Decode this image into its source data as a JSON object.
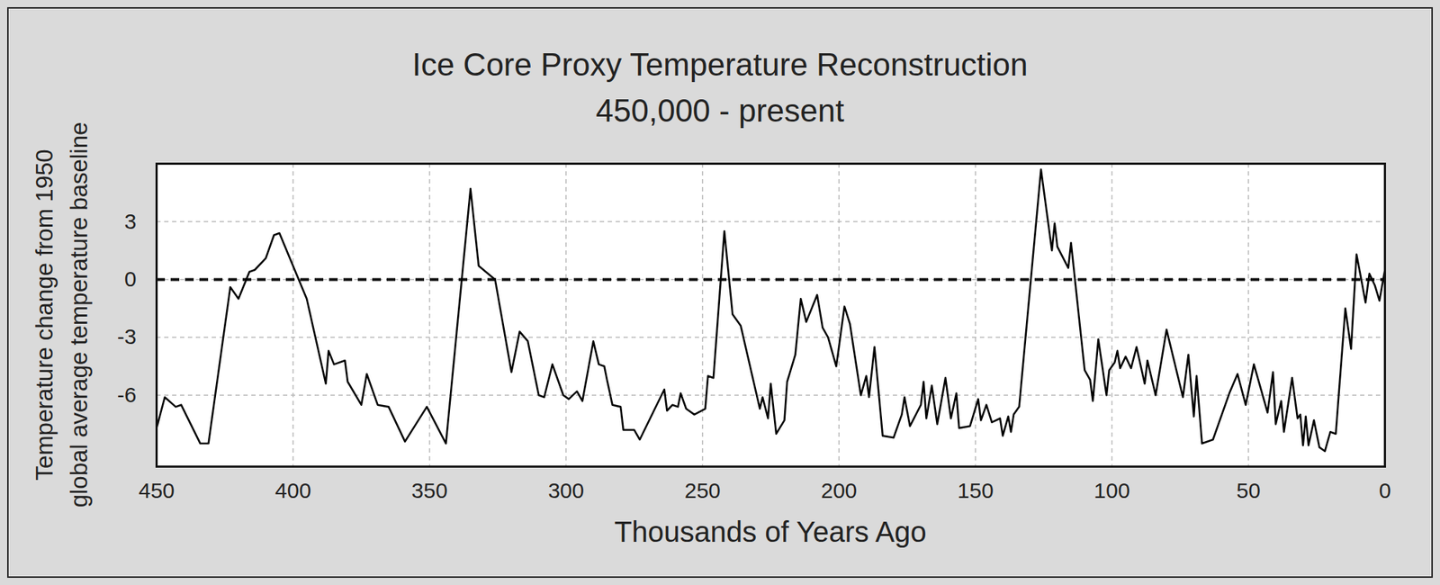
{
  "chart_data": {
    "type": "line",
    "title": "Ice Core Proxy Temperature Reconstruction",
    "subtitle": "450,000 - present",
    "x_label": "Thousands of Years Ago",
    "y_label": "Temperature change from 1950\nglobal average temperature baseline",
    "color": "#000000",
    "grid": true,
    "baseline": 0,
    "xlim": [
      450,
      0
    ],
    "xticks": [
      450,
      400,
      350,
      300,
      250,
      200,
      150,
      100,
      50,
      0
    ],
    "ylim": [
      -9.7,
      6
    ],
    "yticks": [
      3,
      0,
      -3,
      -6
    ],
    "x": [
      450,
      447,
      443,
      441,
      434,
      431,
      423,
      420,
      416,
      414,
      410,
      407,
      405,
      395,
      388,
      387,
      385,
      381,
      380,
      375,
      373,
      369,
      365,
      359,
      351,
      344,
      335,
      332,
      326,
      320,
      317,
      314,
      310,
      308,
      305,
      301,
      299,
      296,
      294,
      290,
      288,
      286,
      285,
      283,
      280,
      279,
      275,
      273,
      264,
      263,
      261,
      259,
      258,
      256,
      253,
      249,
      248,
      246,
      242,
      239,
      236,
      229,
      228,
      226,
      225,
      223,
      220,
      219,
      216,
      214,
      212,
      208,
      206,
      204,
      201,
      198,
      196,
      192,
      190,
      189,
      187,
      184,
      180,
      177,
      176,
      174,
      170,
      169,
      168,
      166,
      164,
      161,
      159,
      157,
      156,
      152,
      149,
      148,
      146,
      144,
      141,
      140,
      138,
      137,
      136,
      134,
      126,
      122,
      121,
      120,
      116,
      115,
      110,
      108,
      107,
      105,
      102,
      101,
      99,
      98,
      97,
      95,
      93,
      91,
      88,
      87,
      84,
      80,
      74,
      72,
      70,
      69,
      67,
      63,
      57,
      54,
      51,
      48,
      46,
      43,
      41,
      40,
      38,
      37,
      34,
      32,
      31,
      30,
      29,
      28,
      26,
      24,
      22,
      20,
      18,
      14.5,
      12.4,
      10.4,
      8.4,
      7.1,
      5.7,
      3.7,
      2,
      0
    ],
    "values": [
      -7.7,
      -6.1,
      -6.6,
      -6.5,
      -8.5,
      -8.5,
      -0.4,
      -1.0,
      0.4,
      0.5,
      1.1,
      2.3,
      2.4,
      -1.0,
      -5.4,
      -3.7,
      -4.4,
      -4.2,
      -5.3,
      -6.5,
      -4.9,
      -6.5,
      -6.6,
      -8.4,
      -6.6,
      -8.5,
      4.7,
      0.7,
      0,
      -4.8,
      -2.7,
      -3.2,
      -6.0,
      -6.1,
      -4.4,
      -6.0,
      -6.2,
      -5.8,
      -6.3,
      -3.2,
      -4.4,
      -4.5,
      -5.2,
      -6.5,
      -6.6,
      -7.8,
      -7.8,
      -8.3,
      -5.7,
      -6.8,
      -6.5,
      -6.6,
      -5.9,
      -6.7,
      -7.0,
      -6.7,
      -5.0,
      -5.1,
      2.5,
      -1.8,
      -2.4,
      -6.7,
      -6.1,
      -7.2,
      -5.4,
      -8.0,
      -7.3,
      -5.3,
      -3.9,
      -1.0,
      -2.2,
      -0.8,
      -2.5,
      -3.0,
      -4.5,
      -1.4,
      -2.3,
      -6.0,
      -5.0,
      -6.1,
      -3.5,
      -8.1,
      -8.2,
      -7.0,
      -6.1,
      -7.6,
      -6.5,
      -5.3,
      -7.2,
      -5.5,
      -7.5,
      -5.1,
      -7.2,
      -5.9,
      -7.7,
      -7.6,
      -6.2,
      -7.3,
      -6.5,
      -7.4,
      -7.2,
      -8.1,
      -7.1,
      -7.9,
      -7.0,
      -6.6,
      5.7,
      1.5,
      2.9,
      1.7,
      0.6,
      1.9,
      -4.7,
      -5.2,
      -6.3,
      -3.1,
      -6.0,
      -4.7,
      -4.3,
      -3.7,
      -4.6,
      -4.0,
      -4.6,
      -3.5,
      -5.4,
      -4.2,
      -6.0,
      -2.6,
      -6.1,
      -3.9,
      -7.1,
      -5.0,
      -8.5,
      -8.3,
      -5.9,
      -4.9,
      -6.5,
      -4.4,
      -5.4,
      -6.9,
      -4.8,
      -7.5,
      -6.3,
      -7.9,
      -5.1,
      -7.2,
      -7.0,
      -8.6,
      -7.1,
      -8.6,
      -7.3,
      -8.7,
      -8.9,
      -7.9,
      -8.0,
      -1.5,
      -3.6,
      1.3,
      -0.2,
      -1.2,
      0.3,
      -0.3,
      -1.1,
      0.5
    ]
  }
}
